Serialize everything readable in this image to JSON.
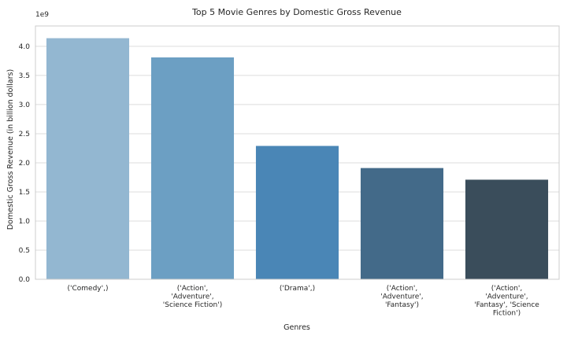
{
  "chart_data": {
    "type": "bar",
    "title": "Top 5 Movie Genres by Domestic Gross Revenue",
    "xlabel": "Genres",
    "ylabel": "Domestic Gross Revenue (in billion dollars)",
    "offset_text": "1e9",
    "categories": [
      [
        "('Comedy',)"
      ],
      [
        "('Action',",
        "'Adventure',",
        "'Science Fiction')"
      ],
      [
        "('Drama',)"
      ],
      [
        "('Action',",
        "'Adventure',",
        "'Fantasy')"
      ],
      [
        "('Action',",
        "'Adventure',",
        "'Fantasy', 'Science",
        "Fiction')"
      ]
    ],
    "values": [
      4.14,
      3.81,
      2.29,
      1.91,
      1.71
    ],
    "ylim": [
      0,
      4.35
    ],
    "yticks": [
      0.0,
      0.5,
      1.0,
      1.5,
      2.0,
      2.5,
      3.0,
      3.5,
      4.0
    ],
    "ytick_labels": [
      "0.0",
      "0.5",
      "1.0",
      "1.5",
      "2.0",
      "2.5",
      "3.0",
      "3.5",
      "4.0"
    ],
    "colors": [
      "#93b7d1",
      "#6c9fc3",
      "#4a86b6",
      "#436a89",
      "#3a4d5b"
    ],
    "grid": true,
    "legend": "none"
  }
}
